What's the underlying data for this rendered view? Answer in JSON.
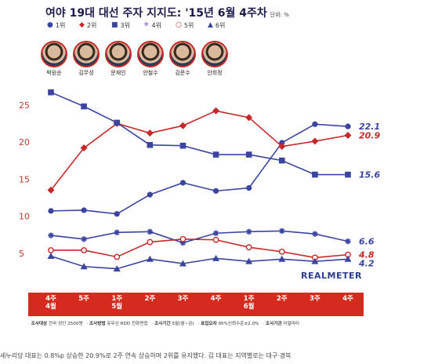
{
  "title": "여야 19대 대선 주자 지지도: '15년 6월 4주차",
  "unit": "단위: %",
  "legend": [
    {
      "symbol": "●",
      "label": "1위",
      "color": "#3b45a0"
    },
    {
      "symbol": "◆",
      "label": "2위",
      "color": "#c62828"
    },
    {
      "symbol": "■",
      "label": "3위",
      "color": "#3b45a0"
    },
    {
      "symbol": "✳",
      "label": "4위",
      "color": "#7a4fb0"
    },
    {
      "symbol": "○",
      "label": "5위",
      "color": "#c62828"
    },
    {
      "symbol": "▲",
      "label": "6위",
      "color": "#3b45a0"
    }
  ],
  "candidates": [
    "박원순",
    "김무성",
    "문재인",
    "안철수",
    "김문수",
    "안희정"
  ],
  "brand": "REALMETER",
  "notes": [
    {
      "key": "조사대상",
      "value": "전국 성인 2500명"
    },
    {
      "key": "조사방법",
      "value": "유무선 RDD 전화면접"
    },
    {
      "key": "조사기간",
      "value": "5월(월~금)"
    },
    {
      "key": "표집오차",
      "value": "95%신뢰수준±2.0%"
    },
    {
      "key": "조사기관",
      "value": "리얼미터"
    }
  ],
  "caption": "새누리당 대표는 0.8%p 상승한 20.9%로 2주 연속 상승하며 2위를 유지했다. 김 대표는 지역별로는 대구·경북",
  "chart_data": {
    "type": "line",
    "x": [
      "4주\n4월",
      "5주",
      "1주\n5월",
      "2주",
      "3주",
      "4주",
      "1주\n6월",
      "2주",
      "3주",
      "4주"
    ],
    "ylim": [
      0,
      27
    ],
    "yticks": [
      5,
      10,
      15,
      20,
      25
    ],
    "grid": false,
    "series": [
      {
        "marker": "circle",
        "color": "#3b45a0",
        "values": [
          10.7,
          10.8,
          10.3,
          12.9,
          14.5,
          13.4,
          13.8,
          19.9,
          22.4,
          22.1
        ],
        "end_label": "22.1"
      },
      {
        "marker": "diamond",
        "color": "#c62828",
        "values": [
          13.5,
          19.2,
          22.5,
          21.2,
          22.2,
          24.2,
          23.3,
          19.4,
          20.1,
          20.9
        ],
        "end_label": "20.9"
      },
      {
        "marker": "square",
        "color": "#3b45a0",
        "values": [
          26.7,
          24.8,
          22.6,
          19.6,
          19.5,
          18.3,
          18.3,
          17.5,
          15.6,
          15.6
        ],
        "end_label": "15.6"
      },
      {
        "marker": "asterisk",
        "color": "#3b45a0",
        "values": [
          7.4,
          6.9,
          7.8,
          7.9,
          6.4,
          7.7,
          7.9,
          8.0,
          7.6,
          6.6
        ],
        "end_label": "6.6"
      },
      {
        "marker": "open-circle",
        "color": "#c62828",
        "values": [
          5.4,
          5.4,
          4.5,
          6.5,
          6.9,
          6.8,
          5.8,
          5.2,
          4.4,
          4.8
        ],
        "end_label": "4.8"
      },
      {
        "marker": "triangle",
        "color": "#3b45a0",
        "values": [
          4.6,
          3.2,
          2.9,
          4.2,
          3.6,
          4.3,
          3.9,
          4.2,
          3.9,
          4.2
        ],
        "end_label": "4.2"
      }
    ]
  }
}
